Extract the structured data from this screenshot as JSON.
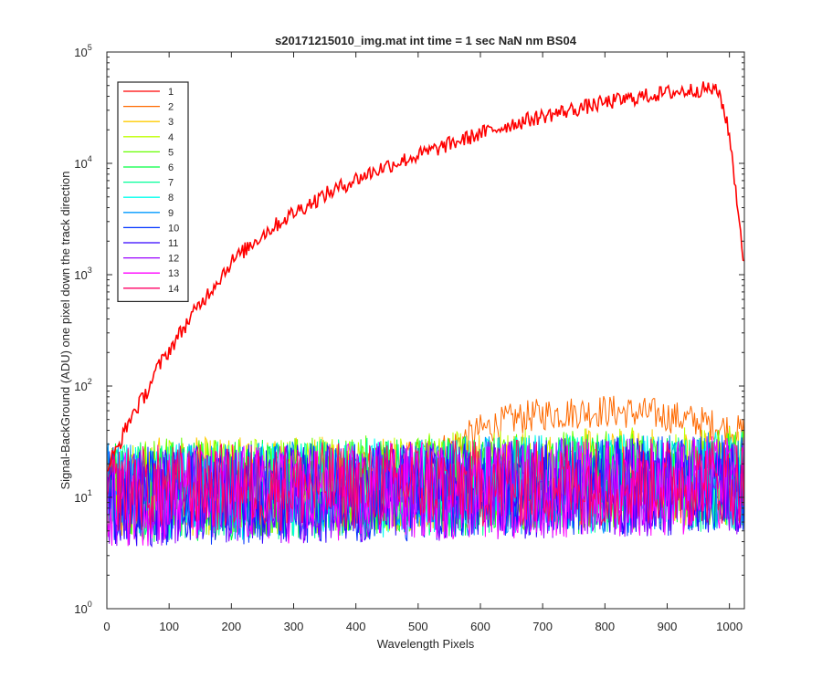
{
  "chart_data": {
    "type": "line",
    "title": "s20171215010_img.mat int time = 1 sec  NaN nm BS04",
    "xlabel": "Wavelength Pixels",
    "ylabel": "Signal-BackGround (ADU) one pixel down the track direction",
    "xlim": [
      0,
      1024
    ],
    "ylim": [
      1,
      100000
    ],
    "yscale": "log",
    "grid": false,
    "legend_position": "top-left",
    "x_ticks": [
      "0",
      "100",
      "200",
      "300",
      "400",
      "500",
      "600",
      "700",
      "800",
      "900",
      "1000"
    ],
    "y_ticks": [
      {
        "base": "10",
        "exp": "0"
      },
      {
        "base": "10",
        "exp": "1"
      },
      {
        "base": "10",
        "exp": "2"
      },
      {
        "base": "10",
        "exp": "3"
      },
      {
        "base": "10",
        "exp": "4"
      },
      {
        "base": "10",
        "exp": "5"
      }
    ],
    "series": [
      {
        "name": "1",
        "color": "#ff0000",
        "profile_x": [
          0,
          20,
          40,
          60,
          80,
          100,
          130,
          160,
          200,
          250,
          300,
          350,
          400,
          450,
          500,
          550,
          600,
          650,
          700,
          750,
          800,
          850,
          900,
          950,
          970,
          985,
          1000,
          1010,
          1024
        ],
        "profile_y": [
          18,
          30,
          55,
          80,
          140,
          210,
          380,
          650,
          1300,
          2300,
          3600,
          5200,
          7200,
          9500,
          11800,
          14800,
          18500,
          22500,
          26500,
          30500,
          35000,
          39000,
          43000,
          46000,
          47000,
          42000,
          18000,
          6000,
          1200
        ],
        "noise": 0.07
      },
      {
        "name": "2",
        "color": "#ff6a00",
        "profile_x": [
          0,
          400,
          550,
          600,
          650,
          700,
          800,
          880,
          950,
          1024
        ],
        "profile_y": [
          14,
          18,
          28,
          40,
          50,
          56,
          60,
          56,
          48,
          38
        ],
        "noise": 0.15
      },
      {
        "name": "3",
        "color": "#ffcc00",
        "profile_x": [
          0,
          1024
        ],
        "profile_y": [
          12,
          16
        ],
        "noise": 0.45
      },
      {
        "name": "4",
        "color": "#bfff00",
        "profile_x": [
          0,
          1024
        ],
        "profile_y": [
          12,
          16
        ],
        "noise": 0.45
      },
      {
        "name": "5",
        "color": "#66ff00",
        "profile_x": [
          0,
          1024
        ],
        "profile_y": [
          12,
          15
        ],
        "noise": 0.45
      },
      {
        "name": "6",
        "color": "#00ff40",
        "profile_x": [
          0,
          1024
        ],
        "profile_y": [
          11,
          14
        ],
        "noise": 0.45
      },
      {
        "name": "7",
        "color": "#00ff99",
        "profile_x": [
          0,
          1024
        ],
        "profile_y": [
          11,
          14
        ],
        "noise": 0.45
      },
      {
        "name": "8",
        "color": "#00ffee",
        "profile_x": [
          0,
          1024
        ],
        "profile_y": [
          11,
          14
        ],
        "noise": 0.45
      },
      {
        "name": "9",
        "color": "#0099ff",
        "profile_x": [
          0,
          1024
        ],
        "profile_y": [
          11,
          14
        ],
        "noise": 0.45
      },
      {
        "name": "10",
        "color": "#0033ff",
        "profile_x": [
          0,
          1024
        ],
        "profile_y": [
          10,
          13
        ],
        "noise": 0.45
      },
      {
        "name": "11",
        "color": "#3300ff",
        "profile_x": [
          0,
          1024
        ],
        "profile_y": [
          10,
          13
        ],
        "noise": 0.45
      },
      {
        "name": "12",
        "color": "#9900ff",
        "profile_x": [
          0,
          1024
        ],
        "profile_y": [
          10,
          13
        ],
        "noise": 0.45
      },
      {
        "name": "13",
        "color": "#ff00ff",
        "profile_x": [
          0,
          1024
        ],
        "profile_y": [
          10,
          13
        ],
        "noise": 0.45
      },
      {
        "name": "14",
        "color": "#ff0066",
        "profile_x": [
          0,
          1024
        ],
        "profile_y": [
          12,
          14
        ],
        "noise": 0.4
      }
    ]
  }
}
